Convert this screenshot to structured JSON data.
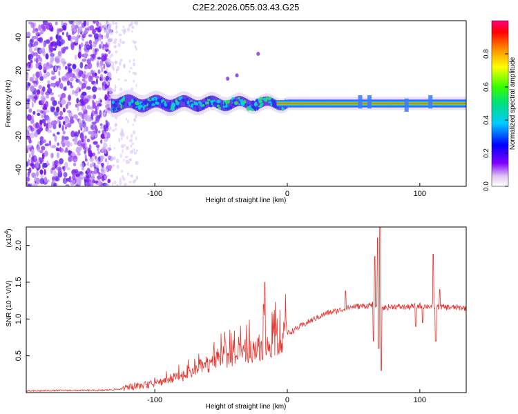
{
  "chart_data": [
    {
      "type": "heatmap",
      "title": "C2E2.2026.055.03.43.G25",
      "xlabel": "Height of straight line (km)",
      "ylabel": "Frequency (Hz)",
      "xlim": [
        -197,
        135
      ],
      "ylim": [
        -50,
        50
      ],
      "x_ticks": [
        -100,
        0,
        100
      ],
      "y_ticks": [
        -40,
        -20,
        0,
        20,
        40
      ],
      "noise_region_end_km": -133,
      "signal_band_center_hz": 0,
      "colorbar": {
        "label": "Normalized spectral amplitude",
        "range": [
          0,
          1
        ],
        "ticks": [
          "0.0",
          "0.2",
          "0.4",
          "0.6",
          "0.8"
        ]
      }
    },
    {
      "type": "line",
      "xlabel": "Height of straight line (km)",
      "ylabel": "SNR (10 * V/V)",
      "scale_label": "(x10",
      "scale_exponent": "4",
      "xlim": [
        -197,
        135
      ],
      "ylim": [
        0,
        2.25
      ],
      "x_ticks": [
        -100,
        0,
        100
      ],
      "y_ticks": [
        "0.5",
        "1.0",
        "1.5",
        "2.0"
      ],
      "color": "#e8302a",
      "series": [
        {
          "name": "SNR",
          "x": [
            -197,
            -170,
            -140,
            -125,
            -115,
            -100,
            -90,
            -80,
            -70,
            -60,
            -50,
            -40,
            -30,
            -20,
            -15,
            -10,
            -5,
            0,
            10,
            20,
            30,
            40,
            45,
            50,
            60,
            65,
            70,
            72,
            80,
            90,
            100,
            110,
            120,
            135
          ],
          "y": [
            0.02,
            0.03,
            0.03,
            0.05,
            0.08,
            0.12,
            0.18,
            0.22,
            0.3,
            0.38,
            0.45,
            0.5,
            0.55,
            0.6,
            0.62,
            0.68,
            0.72,
            0.8,
            0.9,
            1.0,
            1.08,
            1.12,
            1.15,
            1.17,
            1.18,
            1.2,
            1.18,
            1.15,
            1.17,
            1.16,
            1.18,
            1.17,
            1.16,
            1.15
          ]
        }
      ]
    }
  ]
}
